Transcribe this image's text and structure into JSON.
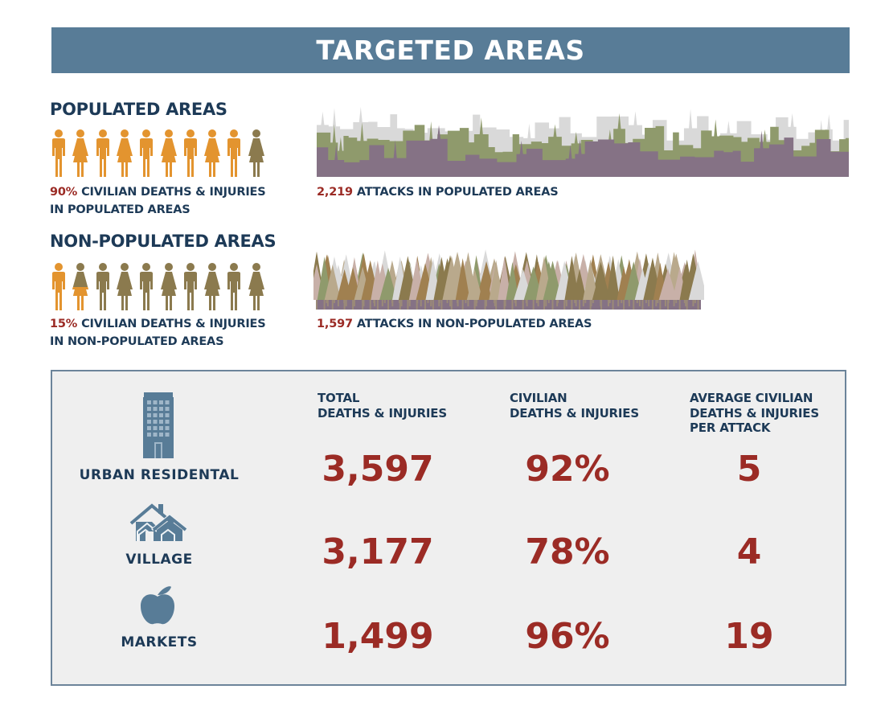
{
  "colors": {
    "banner": "#587c97",
    "navy": "#1d3a57",
    "red": "#9b2b25",
    "orange": "#e3942f",
    "olive": "#8b7a4e",
    "purple": "#857285",
    "green": "#8f9a6c",
    "grey": "#d9d9d9",
    "icon_blue": "#587c97"
  },
  "header": {
    "title": "TARGETED AREAS"
  },
  "populated": {
    "title": "POPULATED AREAS",
    "people_total": 10,
    "people_highlighted": 9,
    "caption_value": "90%",
    "caption_line1": "CIVILIAN DEATHS & INJURIES",
    "caption_line2": "IN POPULATED AREAS",
    "attacks_value": "2,219",
    "attacks_label": "ATTACKS IN POPULATED AREAS"
  },
  "non_populated": {
    "title": "NON-POPULATED AREAS",
    "people_total": 10,
    "people_highlighted": 1.5,
    "caption_value": "15%",
    "caption_line1": "CIVILIAN DEATHS & INJURIES",
    "caption_line2": "IN NON-POPULATED AREAS",
    "attacks_value": "1,597",
    "attacks_label": "ATTACKS IN NON-POPULATED AREAS"
  },
  "stats": {
    "columns": [
      {
        "line1": "TOTAL",
        "line2": "DEATHS & INJURIES",
        "line3": ""
      },
      {
        "line1": "CIVILIAN",
        "line2": "DEATHS & INJURIES",
        "line3": ""
      },
      {
        "line1": "AVERAGE CIVILIAN",
        "line2": "DEATHS & INJURIES",
        "line3": "PER ATTACK"
      }
    ],
    "rows": [
      {
        "label": "URBAN RESIDENTAL",
        "icon": "building-icon",
        "total": "3,597",
        "civilian": "92%",
        "average": "5"
      },
      {
        "label": "VILLAGE",
        "icon": "houses-icon",
        "total": "3,177",
        "civilian": "78%",
        "average": "4"
      },
      {
        "label": "MARKETS",
        "icon": "apple-icon",
        "total": "1,499",
        "civilian": "96%",
        "average": "19"
      }
    ]
  }
}
